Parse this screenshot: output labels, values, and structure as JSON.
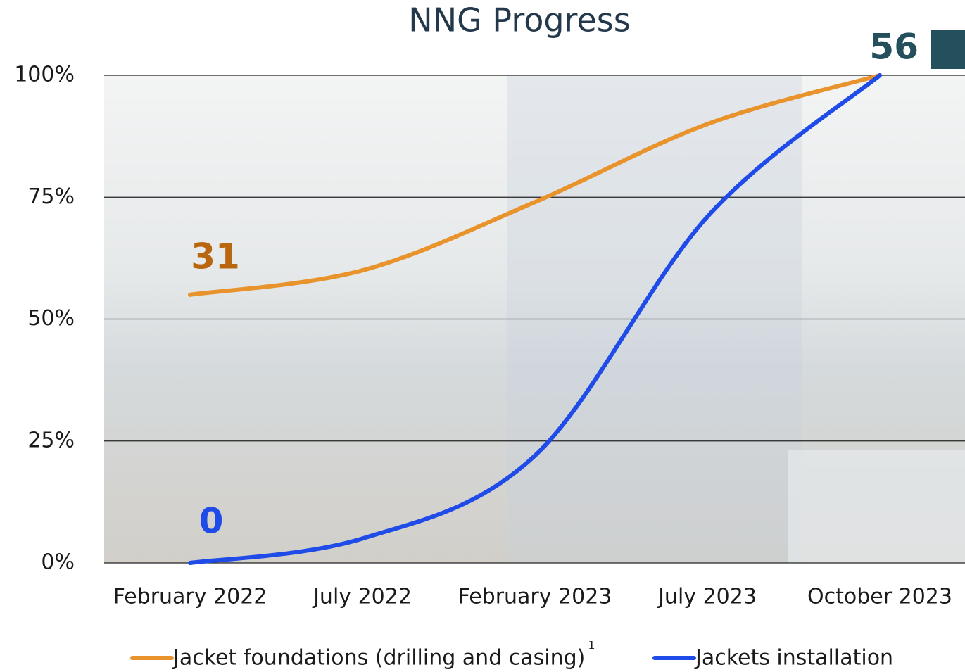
{
  "chart_data": {
    "type": "line",
    "title": "NNG Progress",
    "categories": [
      "February 2022",
      "July 2022",
      "February 2023",
      "July 2023",
      "October 2023"
    ],
    "series": [
      {
        "name": "Jacket foundations (drilling and casing)",
        "note": "1",
        "color": "#e8932c",
        "values": [
          55,
          60,
          74,
          90,
          100
        ]
      },
      {
        "name": "Jackets installation",
        "color": "#1f4be8",
        "values": [
          0,
          5,
          22,
          71,
          100
        ]
      }
    ],
    "annotations": [
      {
        "text": "31",
        "color": "#b8660f"
      },
      {
        "text": "0",
        "color": "#1f4be8"
      },
      {
        "text": "56",
        "color": "#23505c"
      }
    ],
    "ylim": [
      0,
      100
    ],
    "yticks": [
      {
        "value": 0,
        "label": "0%"
      },
      {
        "value": 25,
        "label": "25%"
      },
      {
        "value": 50,
        "label": "50%"
      },
      {
        "value": 75,
        "label": "75%"
      },
      {
        "value": 100,
        "label": "100%"
      }
    ],
    "grid": true
  }
}
